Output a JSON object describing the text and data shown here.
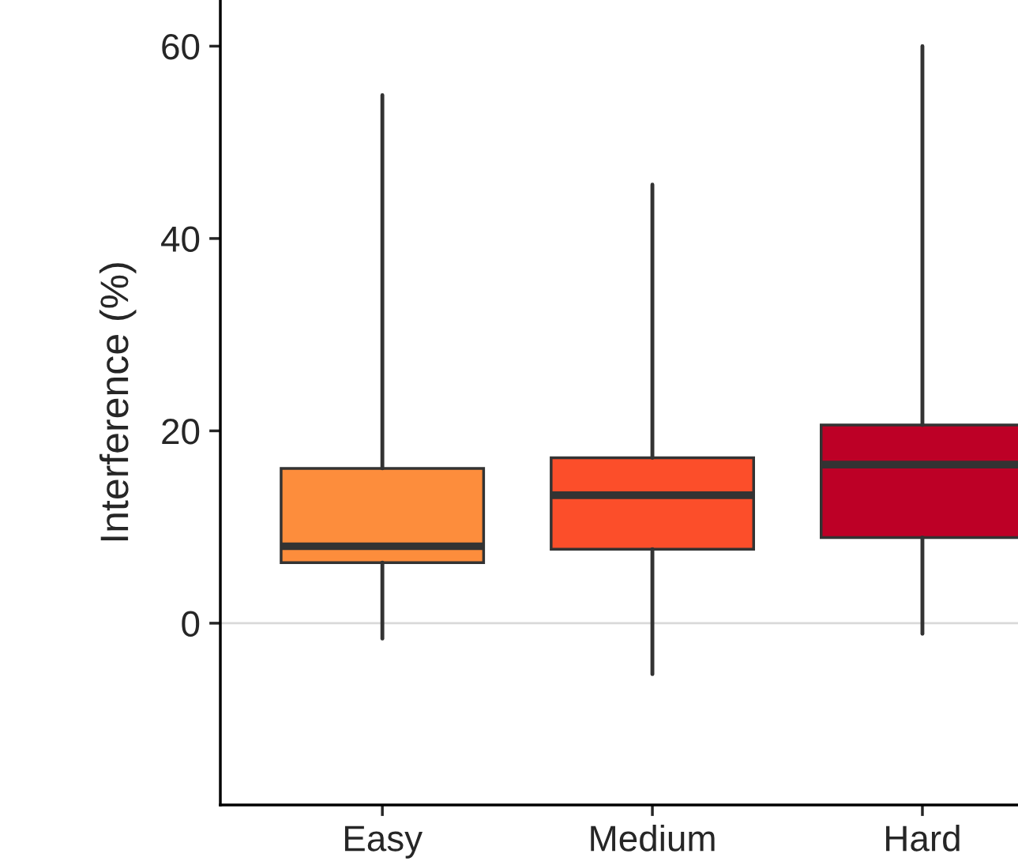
{
  "chart_data": {
    "type": "box",
    "ylabel": "Interference (%)",
    "categories": [
      "Easy",
      "Medium",
      "Hard"
    ],
    "colors": [
      "#fd8d3c",
      "#fc4e2a",
      "#bd0026"
    ],
    "boxes": [
      {
        "low": -1.6,
        "q1": 6.3,
        "median": 8.0,
        "q3": 16.1,
        "high": 54.9
      },
      {
        "low": -5.3,
        "q1": 7.7,
        "median": 13.3,
        "q3": 17.2,
        "high": 45.6
      },
      {
        "low": -1.1,
        "q1": 8.9,
        "median": 16.5,
        "q3": 20.6,
        "high": 60.0
      }
    ],
    "ylim": [
      -18.9,
      64.8
    ],
    "yticks": [
      0,
      20,
      40,
      60
    ],
    "ref_lines": [
      {
        "axis": "y",
        "value": 0,
        "color": "#d9d9d9"
      }
    ]
  }
}
